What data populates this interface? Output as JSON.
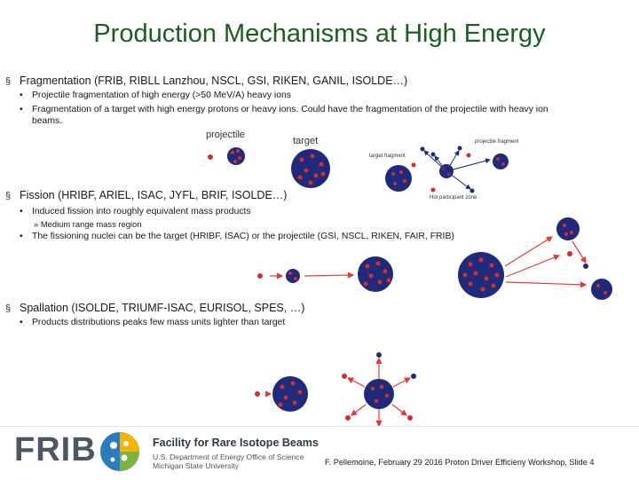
{
  "title": "Production Mechanisms at High Energy",
  "sections": [
    {
      "heading": "Fragmentation (FRIB, RIBLL Lanzhou, NSCL, GSI, RIKEN, GANIL, ISOLDE…)",
      "points": [
        "Projectile fragmentation of high energy (>50 MeV/A) heavy ions",
        "Fragmentation of a target with high energy protons or heavy ions. Could have the fragmentation of the projectile with heavy ion",
        "beams."
      ]
    },
    {
      "heading": "Fission (HRIBF, ARIEL, ISAC, JYFL, BRIF, ISOLDE…)",
      "points": [
        "Induced fission into roughly equivalent mass products",
        "Medium range mass region",
        "The fissioning nuclei can be the target (HRIBF, ISAC) or the  projectile (GSI, NSCL, RIKEN, FAIR, FRIB)"
      ]
    },
    {
      "heading": "Spallation (ISOLDE, TRIUMF-ISAC, EURISOL, SPES, …)",
      "points": [
        "Products distributions peaks few mass units lighter than target"
      ]
    }
  ],
  "figure_labels": {
    "projectile": "projectile",
    "target": "target",
    "target_fragment": "target fragment",
    "projectile_fragment": "projectile fragment",
    "participant_zone": "Hot participant zone"
  },
  "footer": {
    "logo_text": "FRIB",
    "org": "Facility for Rare Isotope Beams",
    "line1": "U.S. Department of Energy Office of Science",
    "line2": "Michigan State University",
    "credit": "F. Pellemoine, February 29 2016 Proton Driver Efficieny Workshop, Slide 4"
  },
  "colors": {
    "title": "#1b5e20",
    "nucleus_blue": "#1f2a7a",
    "nucleon_red": "#d32f2f",
    "arrow_red": "#e53935"
  }
}
